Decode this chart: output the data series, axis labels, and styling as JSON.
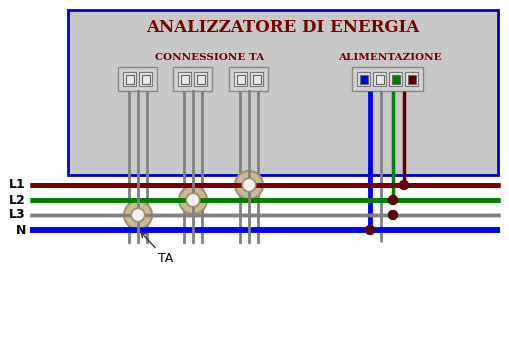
{
  "title": "ANALIZZATORE DI ENERGIA",
  "subtitle_ta": "CONNESSIONE TA",
  "subtitle_alim": "ALIMENTAZIONE",
  "label_ta": "TA",
  "bus_labels": [
    "L1",
    "L2",
    "L3",
    "N"
  ],
  "bus_colors": [
    "#7a0000",
    "#008000",
    "#808080",
    "#0000ff"
  ],
  "bus_lws": [
    3.5,
    3.5,
    2.5,
    4
  ],
  "box_bg": "#c8c8c8",
  "box_border": "#0000cd",
  "title_color": "#7a0000",
  "wire_gray": "#808080",
  "wire_blue": "#0000ff",
  "wire_green": "#008000",
  "wire_dark": "#5a0000",
  "connector_bg": "#d8d8d8",
  "connector_border": "#999999",
  "page_bg": "#ffffff",
  "ta_torus_color": "#c8b898",
  "ta_torus_edge_color": "#a09070",
  "dot_color": "#5a0000"
}
